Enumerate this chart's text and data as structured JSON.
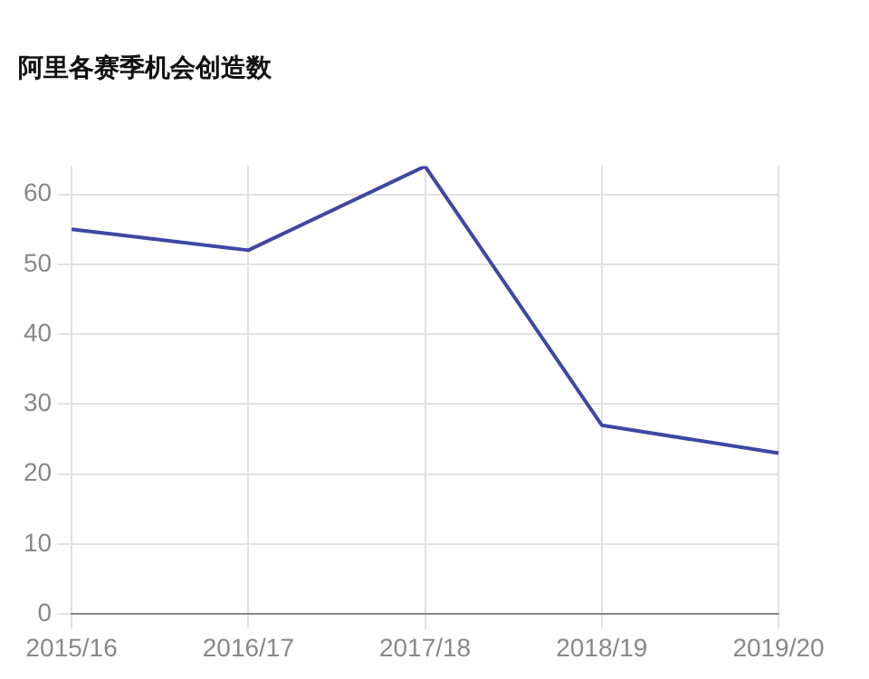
{
  "chart_data": {
    "type": "line",
    "title": "阿里各赛季机会创造数",
    "categories": [
      "2015/16",
      "2016/17",
      "2017/18",
      "2018/19",
      "2019/20"
    ],
    "series": [
      {
        "color": "#3f47a3",
        "values": [
          55,
          52,
          64,
          27,
          23
        ]
      }
    ],
    "ylim": [
      0,
      64
    ],
    "yticks": [
      0,
      10,
      20,
      30,
      40,
      50,
      60
    ],
    "grid": true,
    "legend": false,
    "marker": "none",
    "line_style": "solid"
  }
}
